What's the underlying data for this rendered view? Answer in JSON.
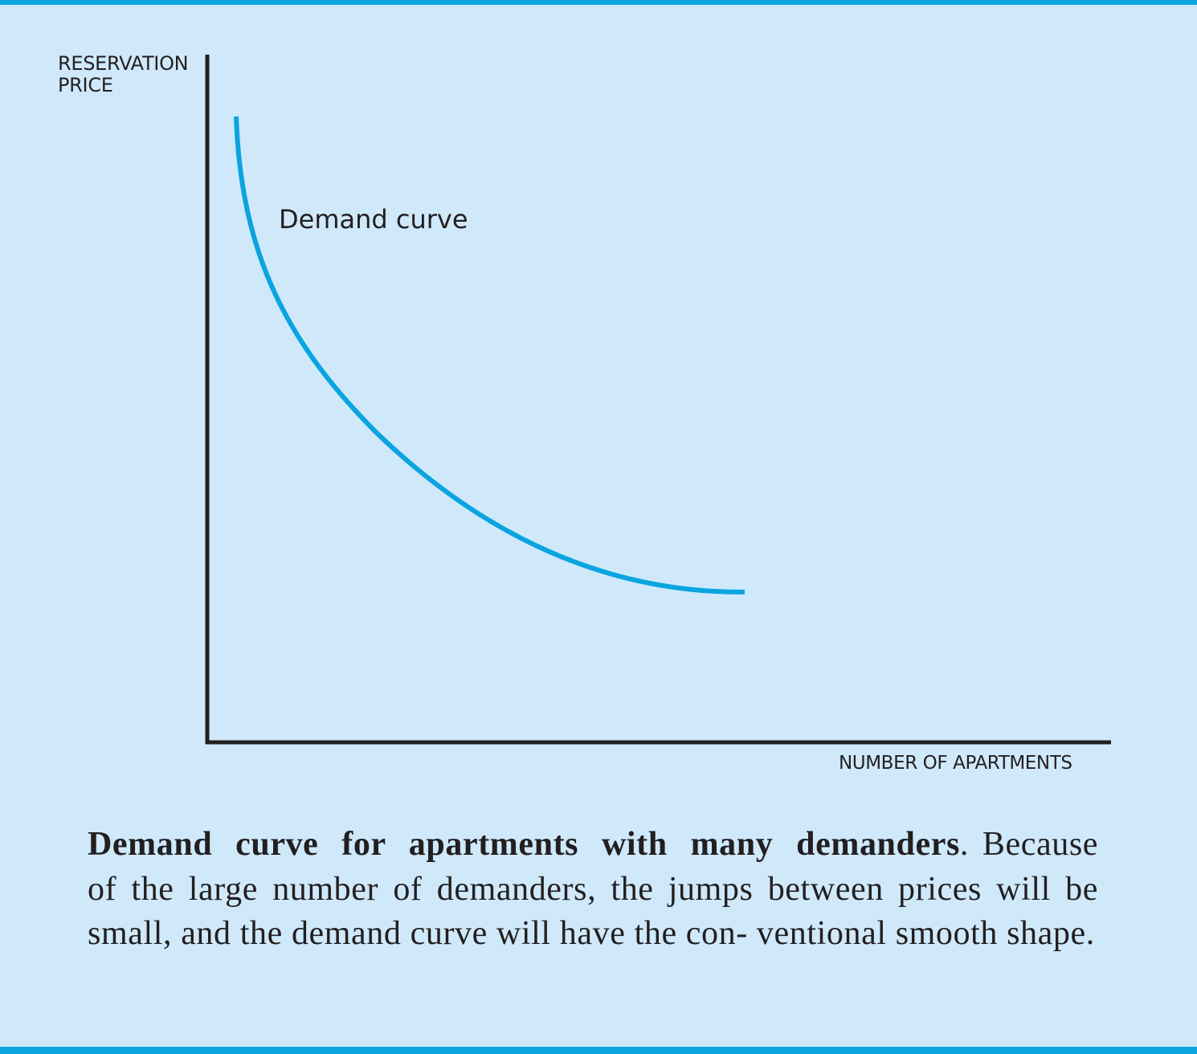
{
  "chart_data": {
    "type": "line",
    "ylabel_line1": "RESERVATION",
    "ylabel_line2": "PRICE",
    "xlabel": "NUMBER OF APARTMENTS",
    "grid": false,
    "legend": "none",
    "series": [
      {
        "name": "Demand curve",
        "color": "#0aa4e0",
        "shape": "smooth decreasing convex"
      }
    ]
  },
  "caption": {
    "title": "Demand curve for apartments with many demanders",
    "body": "Because of the large number of demanders, the jumps between prices will be small, and the demand curve will have the con- ventional smooth shape."
  }
}
